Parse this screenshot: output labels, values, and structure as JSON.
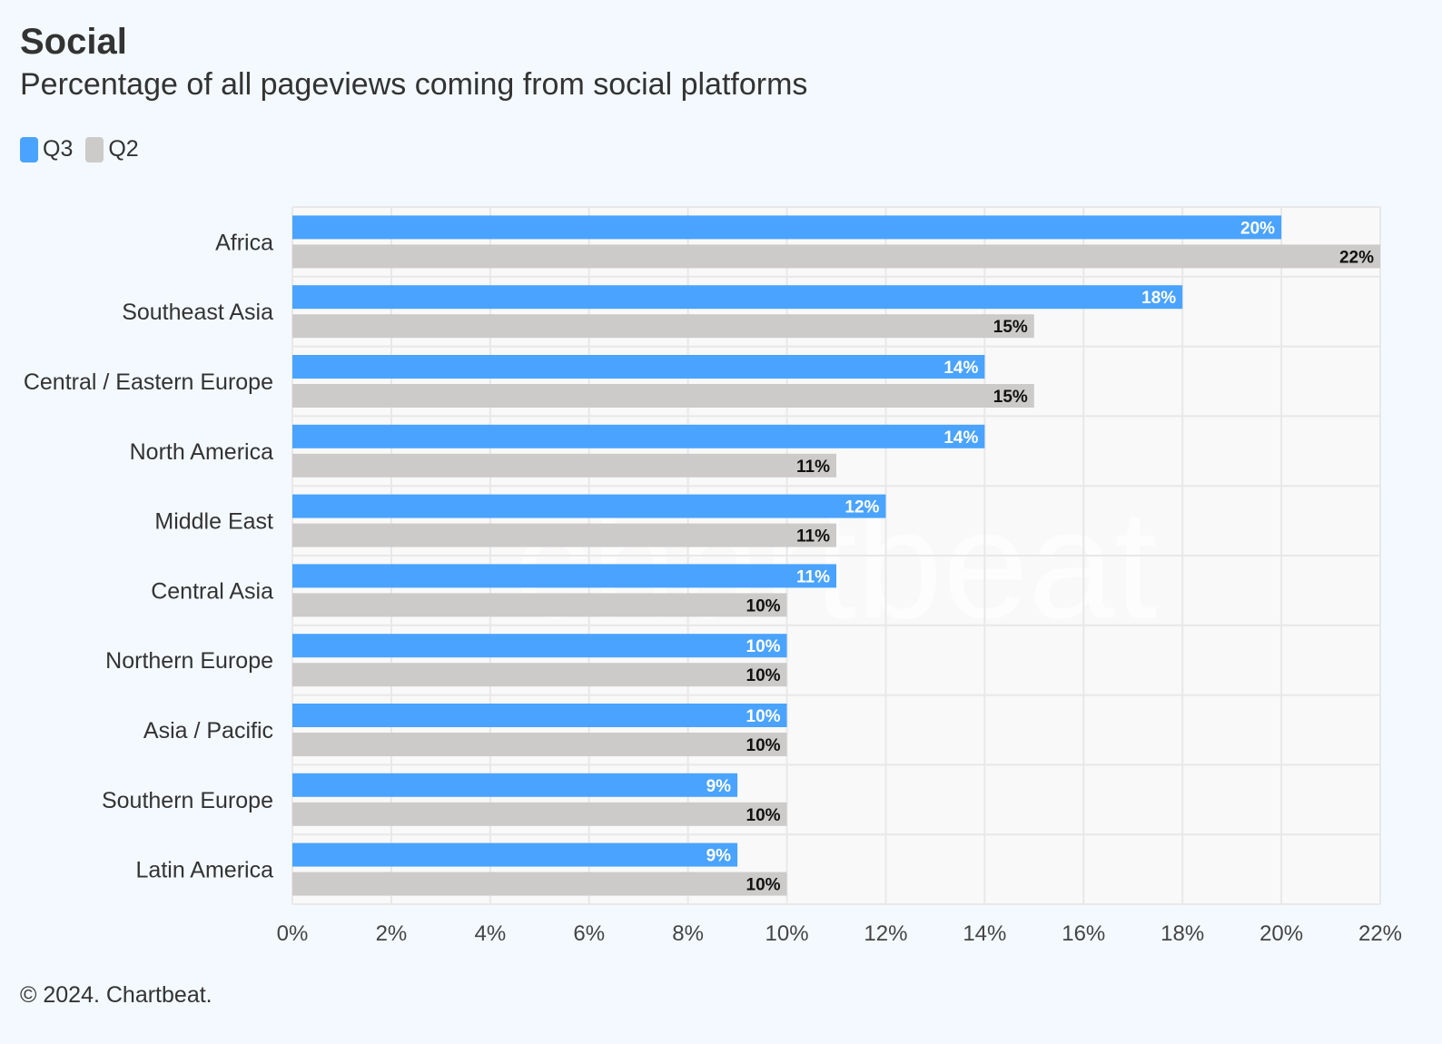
{
  "header": {
    "title": "Social",
    "subtitle": "Percentage of all pageviews coming from social platforms"
  },
  "legend": {
    "placement": "top-left",
    "items": [
      {
        "label": "Q3",
        "color": "#4aa3ff"
      },
      {
        "label": "Q2",
        "color": "#cccbca"
      }
    ]
  },
  "watermark": {
    "text": "chartbeat"
  },
  "footer": {
    "credit": "© 2024. Chartbeat."
  },
  "chart_data": {
    "type": "bar",
    "orientation": "horizontal",
    "title": "Social",
    "subtitle": "Percentage of all pageviews coming from social platforms",
    "xlabel": "",
    "ylabel": "",
    "unit": "%",
    "xlim": [
      0,
      22
    ],
    "xticks": [
      0,
      2,
      4,
      6,
      8,
      10,
      12,
      14,
      16,
      18,
      20,
      22
    ],
    "xtick_labels": [
      "0%",
      "2%",
      "4%",
      "6%",
      "8%",
      "10%",
      "12%",
      "14%",
      "16%",
      "18%",
      "20%",
      "22%"
    ],
    "grid": true,
    "legend_placement": "top-left",
    "categories": [
      "Africa",
      "Southeast Asia",
      "Central / Eastern Europe",
      "North America",
      "Middle East",
      "Central Asia",
      "Northern Europe",
      "Asia / Pacific",
      "Southern Europe",
      "Latin America"
    ],
    "series": [
      {
        "name": "Q3",
        "color": "#4aa3ff",
        "label_color": "#ffffff",
        "values": [
          20,
          18,
          14,
          14,
          12,
          11,
          10,
          10,
          9,
          9
        ],
        "labels": [
          "20%",
          "18%",
          "14%",
          "14%",
          "12%",
          "11%",
          "10%",
          "10%",
          "9%",
          "9%"
        ]
      },
      {
        "name": "Q2",
        "color": "#cccbca",
        "label_color": "#111111",
        "values": [
          22,
          15,
          15,
          11,
          11,
          10,
          10,
          10,
          10,
          10
        ],
        "labels": [
          "22%",
          "15%",
          "15%",
          "11%",
          "11%",
          "10%",
          "10%",
          "10%",
          "10%",
          "10%"
        ]
      }
    ]
  }
}
